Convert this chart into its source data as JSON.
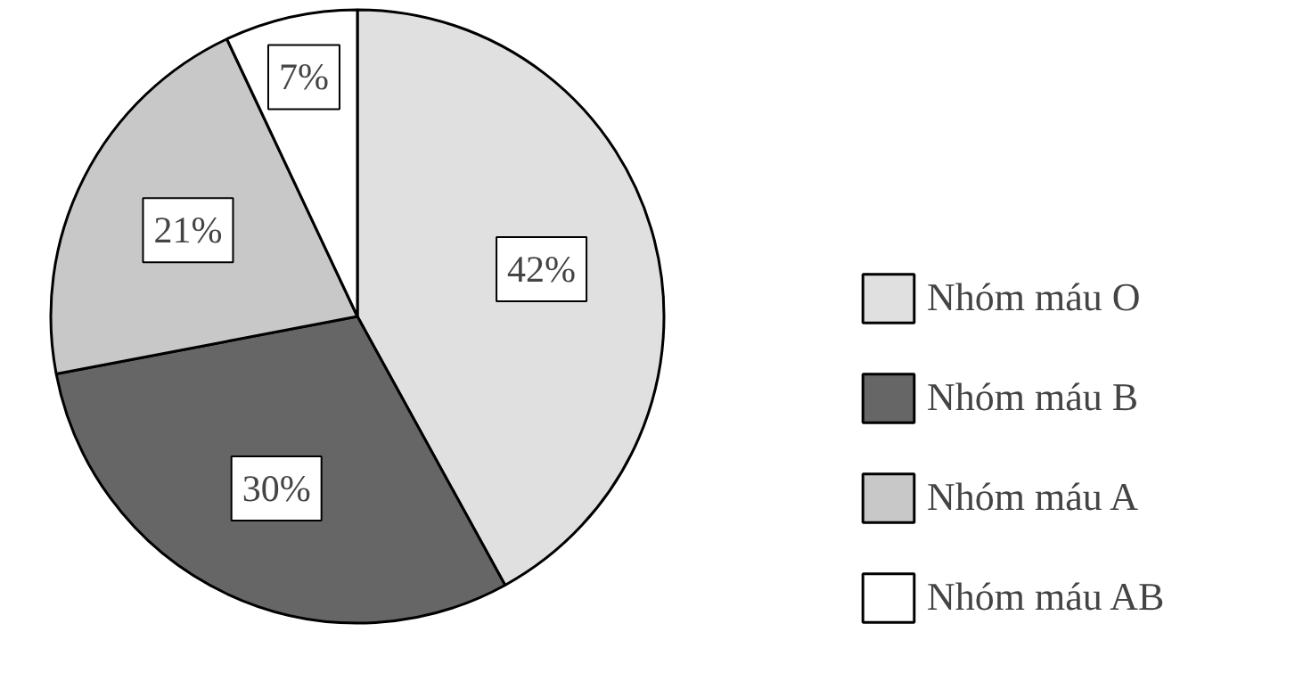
{
  "chart_data": {
    "type": "pie",
    "categories": [
      "Nhóm máu O",
      "Nhóm máu B",
      "Nhóm máu A",
      "Nhóm máu AB"
    ],
    "values": [
      42,
      30,
      21,
      7
    ],
    "value_labels": [
      "42%",
      "30%",
      "21%",
      "7%"
    ],
    "colors": [
      "#e0e0e0",
      "#666666",
      "#c8c8c8",
      "#ffffff"
    ],
    "legend": "right"
  }
}
